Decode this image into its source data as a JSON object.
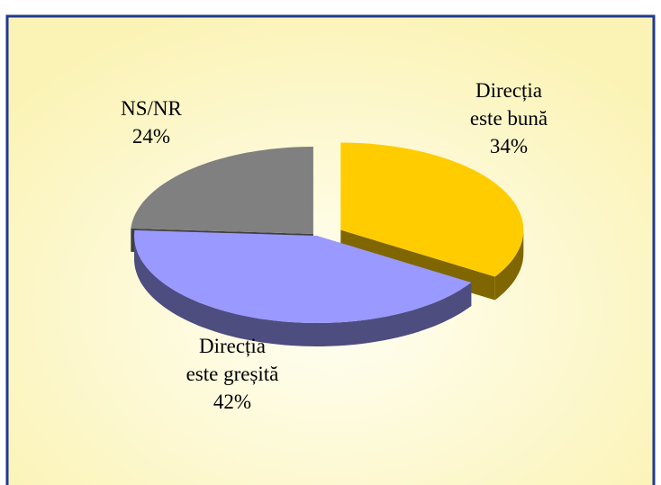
{
  "chart_data": {
    "type": "pie3d",
    "categories": [
      "Direcția este bună",
      "Direcția este greșită",
      "NS/NR"
    ],
    "values": [
      34,
      42,
      24
    ],
    "value_labels": [
      "34%",
      "42%",
      "24%"
    ],
    "colors": [
      "#ffcc00",
      "#9999ff",
      "#808080"
    ],
    "side_colors": [
      "#806600",
      "#4d4d80",
      "#404040"
    ]
  }
}
